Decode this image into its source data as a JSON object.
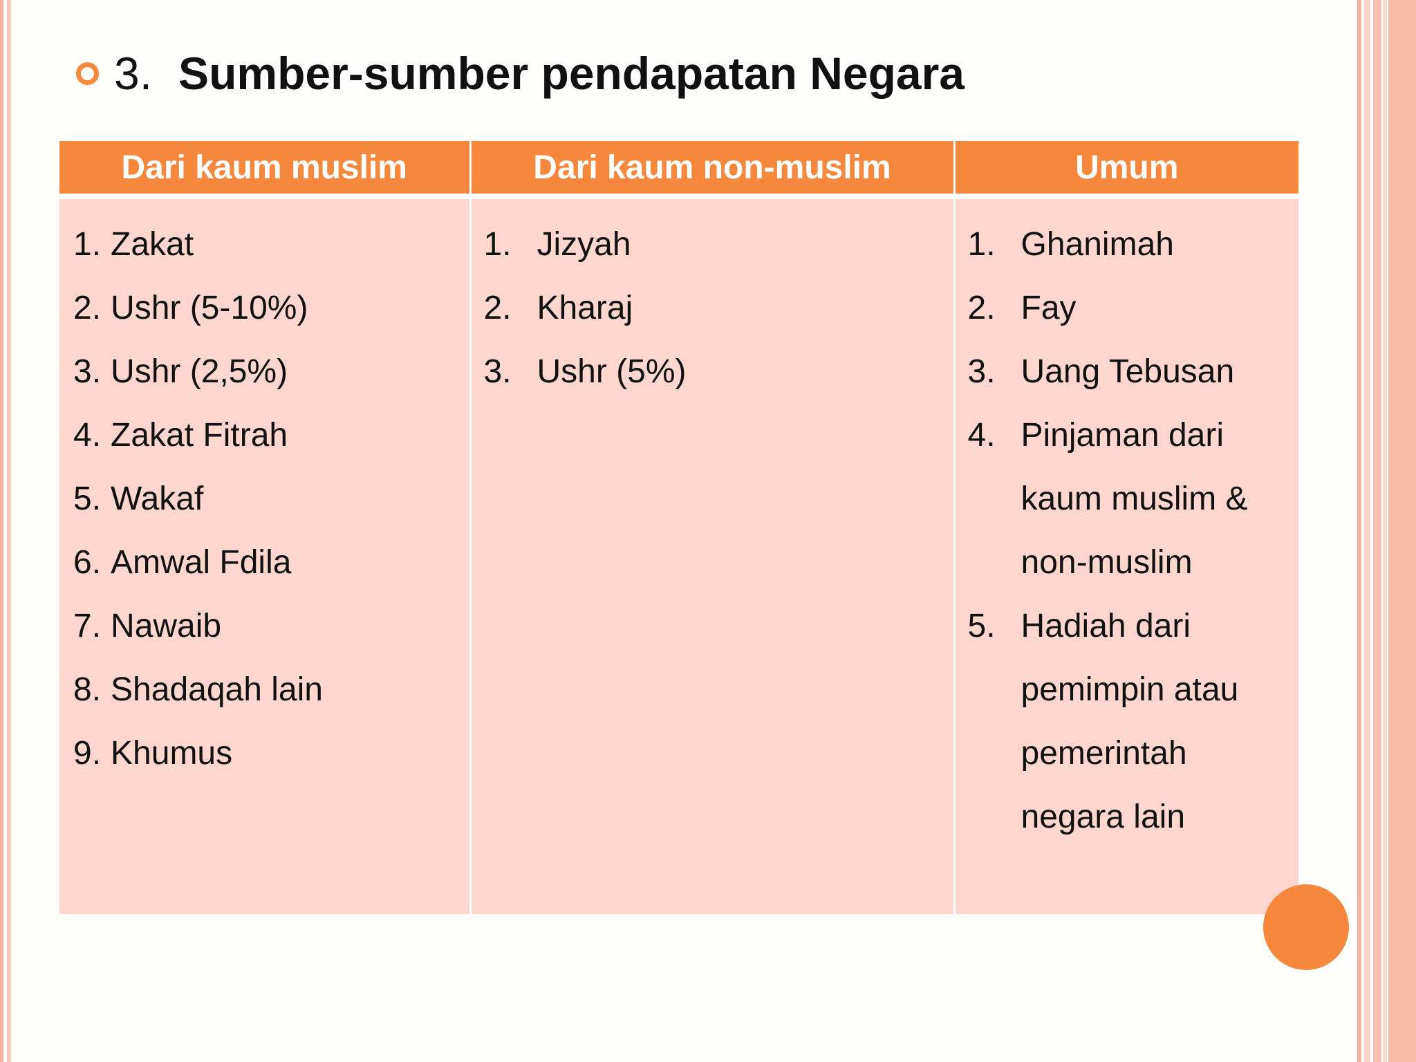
{
  "slide": {
    "number": "3.",
    "title": "Sumber-sumber pendapatan Negara",
    "accent_color": "#f5883c",
    "cell_color": "#fdd7cd"
  },
  "table": {
    "headers": [
      "Dari kaum muslim",
      "Dari kaum non-muslim",
      "Umum"
    ],
    "col1": [
      {
        "n": "1.",
        "t": "Zakat"
      },
      {
        "n": "2.",
        "t": "Ushr (5-10%)"
      },
      {
        "n": "3.",
        "t": "Ushr (2,5%)"
      },
      {
        "n": "4.",
        "t": "Zakat Fitrah"
      },
      {
        "n": "5.",
        "t": "Wakaf"
      },
      {
        "n": "6.",
        "t": "Amwal Fdila"
      },
      {
        "n": "7.",
        "t": "Nawaib"
      },
      {
        "n": "8.",
        "t": "Shadaqah lain"
      },
      {
        "n": "9.",
        "t": "Khumus"
      }
    ],
    "col2": [
      {
        "n": "1.",
        "t": "Jizyah"
      },
      {
        "n": "2.",
        "t": "Kharaj"
      },
      {
        "n": "3.",
        "t": "Ushr (5%)"
      }
    ],
    "col3": [
      {
        "n": "1.",
        "t": "Ghanimah"
      },
      {
        "n": "2.",
        "t": "Fay"
      },
      {
        "n": "3.",
        "t": "Uang Tebusan"
      },
      {
        "n": "4.",
        "t": "Pinjaman dari\nkaum muslim &\nnon-muslim"
      },
      {
        "n": "5.",
        "t": "Hadiah dari\npemimpin atau\npemerintah\nnegara lain"
      }
    ]
  }
}
